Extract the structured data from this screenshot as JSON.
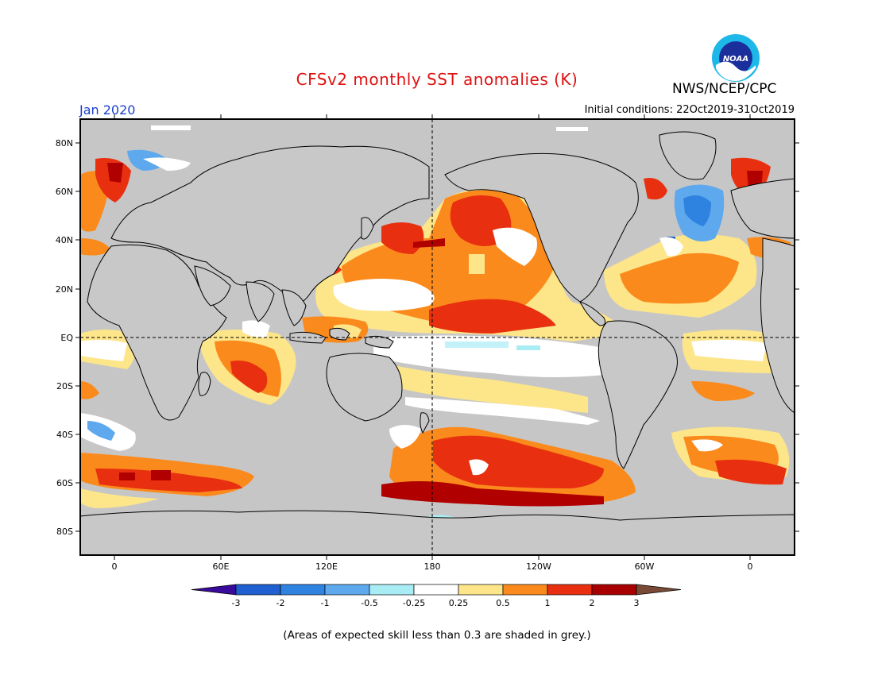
{
  "title": "CFSv2 monthly SST anomalies (K)",
  "organization": "NWS/NCEP/CPC",
  "logo_text": "NOAA",
  "target_month": "Jan 2020",
  "initial_conditions": "Initial conditions: 22Oct2019-31Oct2019",
  "footnote": "(Areas of expected skill less than 0.3 are shaded in grey.)",
  "map": {
    "lat_labels": [
      "80N",
      "60N",
      "40N",
      "20N",
      "EQ",
      "20S",
      "40S",
      "60S",
      "80S"
    ],
    "lon_labels": [
      "0",
      "60E",
      "120E",
      "180",
      "120W",
      "60W",
      "0"
    ],
    "colors": {
      "land": "#c8c8c8",
      "grey_skill": "#c0c0c0",
      "coast": "#000000"
    }
  },
  "colorbar": {
    "labels": [
      "-3",
      "-2",
      "-1",
      "-0.5",
      "-0.25",
      "0.25",
      "0.5",
      "1",
      "2",
      "3"
    ],
    "colors": [
      "#3a0a9a",
      "#1f5fcf",
      "#2e82e0",
      "#5ea8ee",
      "#a8ecf4",
      "#ffffff",
      "#fde58a",
      "#fb8a1c",
      "#e83010",
      "#a80000",
      "#7a4a36"
    ]
  }
}
